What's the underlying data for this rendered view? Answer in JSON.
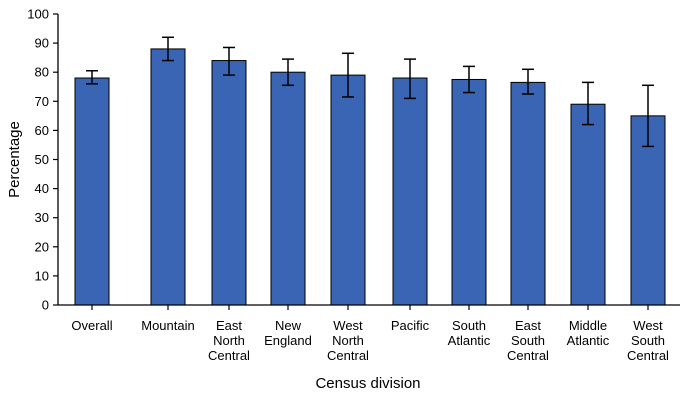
{
  "chart_data": {
    "type": "bar",
    "title": "",
    "xlabel": "Census division",
    "ylabel": "Percentage",
    "ylim": [
      0,
      100
    ],
    "yticks": [
      0,
      10,
      20,
      30,
      40,
      50,
      60,
      70,
      80,
      90,
      100
    ],
    "grid": false,
    "categories": [
      [
        "Overall"
      ],
      [
        "Mountain"
      ],
      [
        "East",
        "North",
        "Central"
      ],
      [
        "New",
        "England"
      ],
      [
        "West",
        "North",
        "Central"
      ],
      [
        "Pacific"
      ],
      [
        "South",
        "Atlantic"
      ],
      [
        "East",
        "South",
        "Central"
      ],
      [
        "Middle",
        "Atlantic"
      ],
      [
        "West",
        "South",
        "Central"
      ]
    ],
    "values": [
      78,
      88,
      84,
      80,
      79,
      78,
      77.5,
      76.5,
      69,
      65
    ],
    "error_low": [
      76,
      84,
      79,
      75.5,
      71.5,
      71,
      73,
      72.5,
      62,
      54.5
    ],
    "error_high": [
      80.5,
      92,
      88.5,
      84.5,
      86.5,
      84.5,
      82,
      81,
      76.5,
      75.5
    ],
    "colors": {
      "bar_fill": "#3a65b5",
      "bar_stroke": "#000000",
      "axis": "#000000"
    }
  }
}
